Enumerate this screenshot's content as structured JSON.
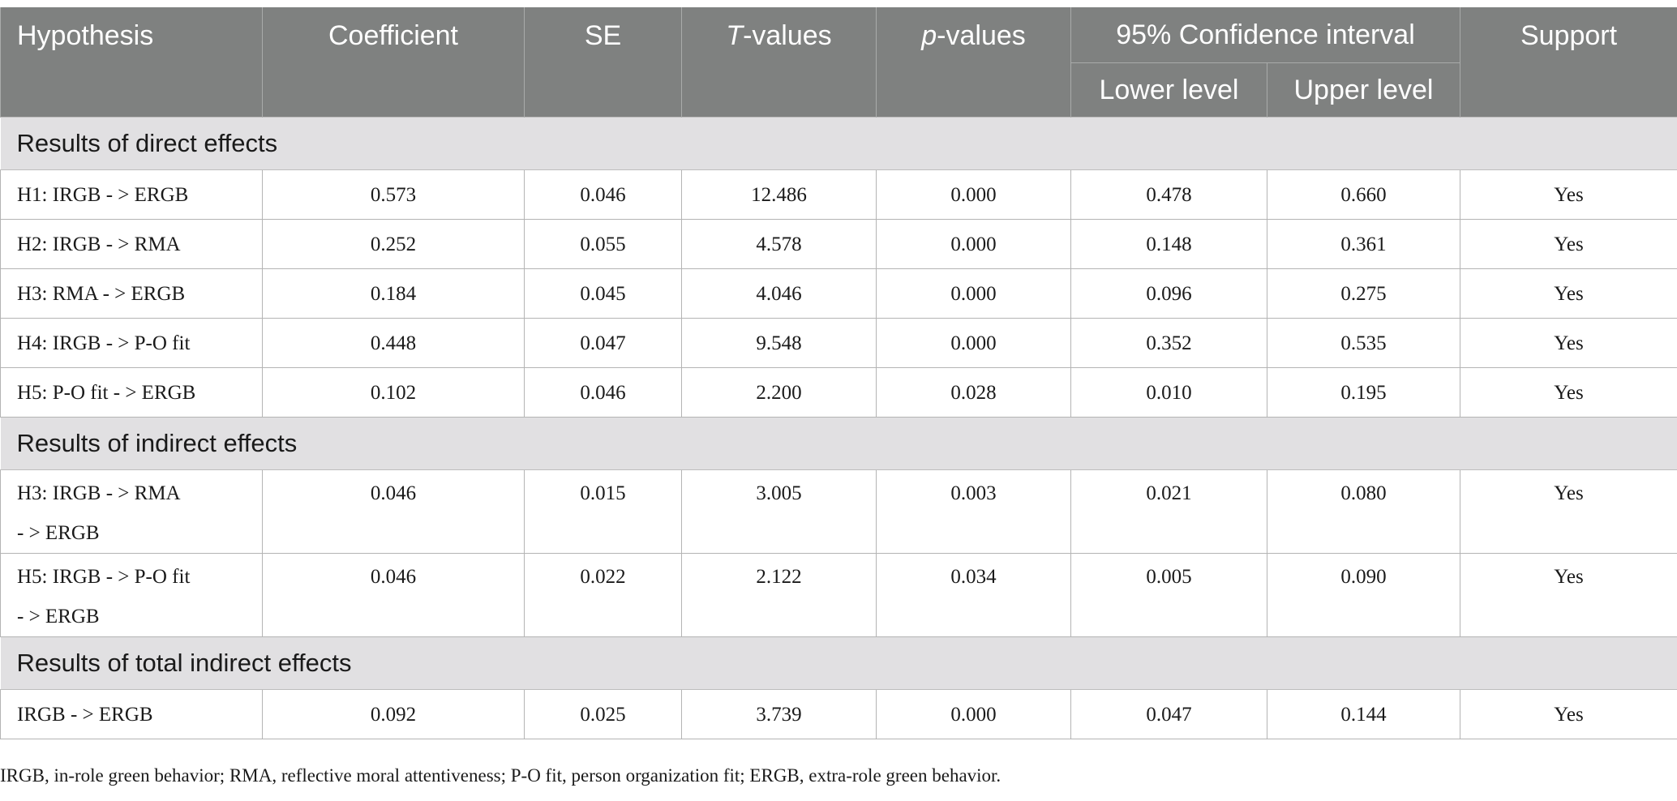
{
  "header": {
    "hypothesis": "Hypothesis",
    "coefficient": "Coefficient",
    "se": "SE",
    "t_values_prefix": "T",
    "t_values_suffix": "-values",
    "p_values_prefix": "p",
    "p_values_suffix": "-values",
    "confidence_interval": "95% Confidence interval",
    "lower_level": "Lower level",
    "upper_level": "Upper level",
    "support": "Support"
  },
  "sections": [
    {
      "title": "Results of direct effects",
      "rows": [
        {
          "hypothesis": "H1: IRGB - > ERGB",
          "coefficient": "0.573",
          "se": "0.046",
          "t": "12.486",
          "p": "0.000",
          "lower": "0.478",
          "upper": "0.660",
          "support": "Yes"
        },
        {
          "hypothesis": "H2: IRGB - > RMA",
          "coefficient": "0.252",
          "se": "0.055",
          "t": "4.578",
          "p": "0.000",
          "lower": "0.148",
          "upper": "0.361",
          "support": "Yes"
        },
        {
          "hypothesis": "H3: RMA - > ERGB",
          "coefficient": "0.184",
          "se": "0.045",
          "t": "4.046",
          "p": "0.000",
          "lower": "0.096",
          "upper": "0.275",
          "support": "Yes"
        },
        {
          "hypothesis": "H4: IRGB - > P-O fit",
          "coefficient": "0.448",
          "se": "0.047",
          "t": "9.548",
          "p": "0.000",
          "lower": "0.352",
          "upper": "0.535",
          "support": "Yes"
        },
        {
          "hypothesis": "H5: P-O fit - > ERGB",
          "coefficient": "0.102",
          "se": "0.046",
          "t": "2.200",
          "p": "0.028",
          "lower": "0.010",
          "upper": "0.195",
          "support": "Yes"
        }
      ]
    },
    {
      "title": "Results of indirect effects",
      "rows": [
        {
          "hypothesis_line1": "H3: IRGB - > RMA",
          "hypothesis_line2": "- > ERGB",
          "coefficient": "0.046",
          "se": "0.015",
          "t": "3.005",
          "p": "0.003",
          "lower": "0.021",
          "upper": "0.080",
          "support": "Yes"
        },
        {
          "hypothesis_line1": "H5: IRGB - > P-O fit",
          "hypothesis_line2": "- > ERGB",
          "coefficient": "0.046",
          "se": "0.022",
          "t": "2.122",
          "p": "0.034",
          "lower": "0.005",
          "upper": "0.090",
          "support": "Yes"
        }
      ]
    },
    {
      "title": "Results of total indirect effects",
      "rows": [
        {
          "hypothesis": "IRGB - > ERGB",
          "coefficient": "0.092",
          "se": "0.025",
          "t": "3.739",
          "p": "0.000",
          "lower": "0.047",
          "upper": "0.144",
          "support": "Yes"
        }
      ]
    }
  ],
  "footnote": "IRGB, in-role green behavior; RMA, reflective moral attentiveness; P-O fit, person organization fit; ERGB, extra-role green behavior."
}
